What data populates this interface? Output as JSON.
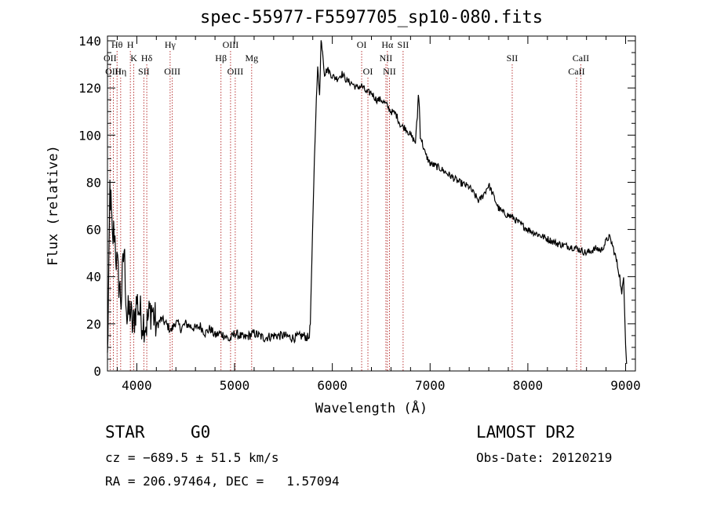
{
  "chart_data": {
    "type": "line",
    "title": "spec-55977-F5597705_sp10-080.fits",
    "xlabel": "Wavelength (Å)",
    "ylabel": "Flux (relative)",
    "xlim": [
      3700,
      9100
    ],
    "ylim": [
      0,
      142
    ],
    "x_ticks": [
      4000,
      5000,
      6000,
      7000,
      8000,
      9000
    ],
    "y_ticks": [
      0,
      20,
      40,
      60,
      80,
      100,
      120,
      140
    ],
    "grid": false,
    "series": [
      {
        "points": [
          [
            3700,
            5
          ],
          [
            3715,
            42
          ],
          [
            3725,
            78
          ],
          [
            3735,
            70
          ],
          [
            3750,
            55
          ],
          [
            3770,
            60
          ],
          [
            3790,
            48
          ],
          [
            3810,
            40
          ],
          [
            3840,
            30
          ],
          [
            3870,
            52
          ],
          [
            3900,
            22
          ],
          [
            3930,
            26
          ],
          [
            3960,
            18
          ],
          [
            4000,
            30
          ],
          [
            4050,
            22
          ],
          [
            4100,
            20
          ],
          [
            4150,
            27
          ],
          [
            4200,
            19
          ],
          [
            4250,
            22
          ],
          [
            4300,
            20
          ],
          [
            4350,
            17
          ],
          [
            4400,
            21
          ],
          [
            4450,
            18
          ],
          [
            4500,
            20
          ],
          [
            4550,
            19
          ],
          [
            4600,
            18
          ],
          [
            4650,
            19
          ],
          [
            4700,
            16
          ],
          [
            4750,
            18
          ],
          [
            4800,
            15
          ],
          [
            4850,
            16
          ],
          [
            4900,
            15
          ],
          [
            4950,
            13
          ],
          [
            5000,
            16
          ],
          [
            5100,
            14
          ],
          [
            5200,
            16
          ],
          [
            5300,
            14
          ],
          [
            5400,
            15
          ],
          [
            5500,
            15
          ],
          [
            5600,
            14
          ],
          [
            5700,
            15
          ],
          [
            5760,
            14
          ],
          [
            5775,
            20
          ],
          [
            5790,
            45
          ],
          [
            5810,
            80
          ],
          [
            5830,
            108
          ],
          [
            5850,
            128
          ],
          [
            5870,
            118
          ],
          [
            5885,
            140
          ],
          [
            5900,
            136
          ],
          [
            5920,
            126
          ],
          [
            5950,
            128
          ],
          [
            6000,
            125
          ],
          [
            6050,
            124
          ],
          [
            6100,
            126
          ],
          [
            6150,
            123
          ],
          [
            6200,
            122
          ],
          [
            6250,
            120
          ],
          [
            6300,
            121
          ],
          [
            6350,
            118
          ],
          [
            6400,
            118
          ],
          [
            6450,
            115
          ],
          [
            6500,
            115
          ],
          [
            6550,
            113
          ],
          [
            6600,
            110
          ],
          [
            6650,
            109
          ],
          [
            6700,
            104
          ],
          [
            6750,
            103
          ],
          [
            6800,
            100
          ],
          [
            6850,
            97
          ],
          [
            6870,
            108
          ],
          [
            6880,
            118
          ],
          [
            6890,
            112
          ],
          [
            6900,
            100
          ],
          [
            6950,
            92
          ],
          [
            7000,
            88
          ],
          [
            7100,
            86
          ],
          [
            7200,
            83
          ],
          [
            7300,
            80
          ],
          [
            7400,
            78
          ],
          [
            7450,
            75
          ],
          [
            7500,
            72
          ],
          [
            7550,
            75
          ],
          [
            7600,
            79
          ],
          [
            7650,
            74
          ],
          [
            7700,
            69
          ],
          [
            7750,
            67
          ],
          [
            7800,
            66
          ],
          [
            7850,
            65
          ],
          [
            7900,
            63
          ],
          [
            8000,
            60
          ],
          [
            8100,
            58
          ],
          [
            8200,
            56
          ],
          [
            8300,
            54
          ],
          [
            8400,
            53
          ],
          [
            8500,
            52
          ],
          [
            8600,
            50
          ],
          [
            8700,
            52
          ],
          [
            8750,
            51
          ],
          [
            8800,
            55
          ],
          [
            8830,
            57
          ],
          [
            8860,
            54
          ],
          [
            8900,
            48
          ],
          [
            8940,
            40
          ],
          [
            8960,
            32
          ],
          [
            8980,
            40
          ],
          [
            9000,
            12
          ],
          [
            9010,
            3
          ]
        ]
      }
    ],
    "lines": [
      {
        "label": "Hθ",
        "x": 3798,
        "row": 1
      },
      {
        "label": "OII",
        "x": 3727,
        "row": 2
      },
      {
        "label": "OIII",
        "x": 3760,
        "row": 3
      },
      {
        "label": "Hη",
        "x": 3835,
        "row": 3
      },
      {
        "label": "H",
        "x": 3934,
        "row": 1
      },
      {
        "label": "K",
        "x": 3969,
        "row": 2
      },
      {
        "label": "Hδ",
        "x": 4102,
        "row": 2
      },
      {
        "label": "SII",
        "x": 4072,
        "row": 3
      },
      {
        "label": "Hγ",
        "x": 4341,
        "row": 1
      },
      {
        "label": "OIII",
        "x": 4363,
        "row": 3
      },
      {
        "label": "OIII",
        "x": 4959,
        "row": 1
      },
      {
        "label": "Hβ",
        "x": 4861,
        "row": 2
      },
      {
        "label": "OIII",
        "x": 5007,
        "row": 3
      },
      {
        "label": "Mg",
        "x": 5175,
        "row": 2
      },
      {
        "label": "OI",
        "x": 6300,
        "row": 1
      },
      {
        "label": "OI",
        "x": 6364,
        "row": 3
      },
      {
        "label": "Hα",
        "x": 6563,
        "row": 1
      },
      {
        "label": "NII",
        "x": 6548,
        "row": 2
      },
      {
        "label": "NII",
        "x": 6584,
        "row": 3
      },
      {
        "label": "SII",
        "x": 6724,
        "row": 1
      },
      {
        "label": "SII",
        "x": 7840,
        "row": 2
      },
      {
        "label": "CaII",
        "x": 8542,
        "row": 2
      },
      {
        "label": "CaII",
        "x": 8498,
        "row": 3
      }
    ]
  },
  "info": {
    "class": "STAR",
    "subclass": "G0",
    "cz": "cz = −689.5 ± 51.5 km/s",
    "coords": "RA = 206.97464, DEC =   1.57094",
    "survey": "LAMOST DR2",
    "obs_date": "Obs-Date: 20120219"
  }
}
